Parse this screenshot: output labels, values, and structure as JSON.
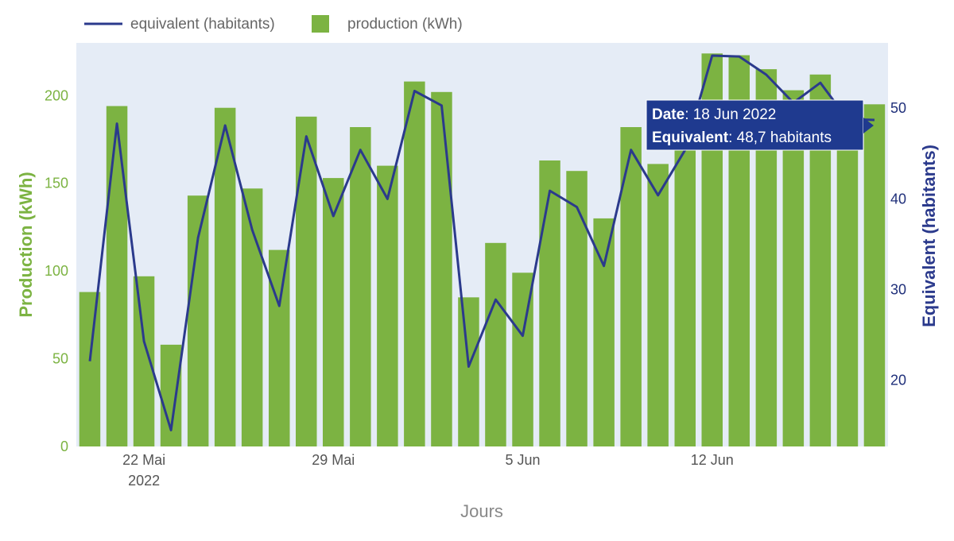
{
  "chart_data": {
    "type": "bar",
    "xlabel": "Jours",
    "ylabel": "Production (kWh)",
    "y2label": "Equivalent (habitants)",
    "ylim": [
      0,
      230
    ],
    "y2lim": [
      12.7,
      57.2
    ],
    "x_tick_labels": [
      {
        "date": "2022-05-22",
        "label": "22 Mai",
        "sublabel": "2022"
      },
      {
        "date": "2022-05-29",
        "label": "29 Mai",
        "sublabel": ""
      },
      {
        "date": "2022-06-05",
        "label": "5 Jun",
        "sublabel": ""
      },
      {
        "date": "2022-06-12",
        "label": "12 Jun",
        "sublabel": ""
      }
    ],
    "y_ticks": [
      0,
      50,
      100,
      150,
      200
    ],
    "y2_ticks": [
      20,
      30,
      40,
      50
    ],
    "legend": {
      "position": "top-left",
      "orientation": "horizontal"
    },
    "grid": false,
    "colors": {
      "bars": "#7cb342",
      "line": "#2b3a8c",
      "plot_bg": "#e5ecf6",
      "tooltip_bg": "#1f3a8f"
    },
    "x": [
      "2022-05-20",
      "2022-05-21",
      "2022-05-22",
      "2022-05-23",
      "2022-05-24",
      "2022-05-25",
      "2022-05-26",
      "2022-05-27",
      "2022-05-28",
      "2022-05-29",
      "2022-05-30",
      "2022-05-31",
      "2022-06-01",
      "2022-06-02",
      "2022-06-03",
      "2022-06-04",
      "2022-06-05",
      "2022-06-06",
      "2022-06-07",
      "2022-06-08",
      "2022-06-09",
      "2022-06-10",
      "2022-06-11",
      "2022-06-12",
      "2022-06-13",
      "2022-06-14",
      "2022-06-15",
      "2022-06-16",
      "2022-06-17",
      "2022-06-18"
    ],
    "series": [
      {
        "name": "production (kWh)",
        "kind": "bar",
        "axis": "y",
        "values": [
          88,
          194,
          97,
          58,
          143,
          193,
          147,
          112,
          188,
          153,
          182,
          160,
          208,
          202,
          85,
          116,
          99,
          163,
          157,
          130,
          182,
          161,
          182,
          224,
          223,
          215,
          203,
          212,
          196,
          195
        ]
      },
      {
        "name": "equivalent (habitants)",
        "kind": "line",
        "axis": "y2",
        "values": [
          22.1,
          48.3,
          24.3,
          14.5,
          35.7,
          48.1,
          36.6,
          28.2,
          46.9,
          38.1,
          45.4,
          40.0,
          51.9,
          50.3,
          21.5,
          28.9,
          24.9,
          40.9,
          39.1,
          32.6,
          45.4,
          40.4,
          45.4,
          55.8,
          55.7,
          53.7,
          50.6,
          52.8,
          48.8,
          48.7
        ]
      }
    ],
    "tooltip": {
      "date_key": "Date",
      "date_value": ": 18 Jun 2022",
      "equiv_key": "Equivalent",
      "equiv_value": ": 48,7 habitants"
    }
  }
}
